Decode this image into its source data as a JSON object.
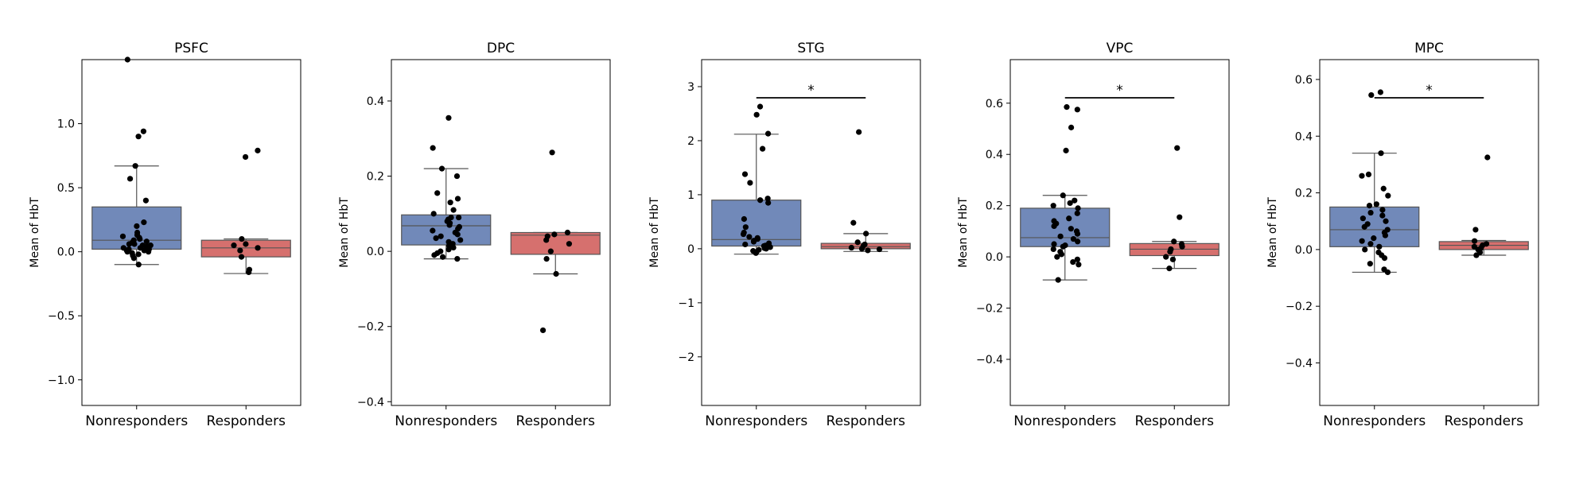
{
  "colors": {
    "nonresponders_box": "#7189b9",
    "responders_box": "#d6706e",
    "points": "#000000",
    "whisker": "#555555",
    "frame": "#000000"
  },
  "chart_data": [
    {
      "type": "box",
      "title": "PSFC",
      "ylabel": "Mean of HbT",
      "categories": [
        "Nonresponders",
        "Responders"
      ],
      "ylim": [
        -1.2,
        1.5
      ],
      "yticks": [
        -1.0,
        -0.5,
        0.0,
        0.5,
        1.0
      ],
      "ytick_labels": [
        "−1.0",
        "−0.5",
        "0.0",
        "0.5",
        "1.0"
      ],
      "boxes": [
        {
          "whislo": -0.1,
          "q1": 0.02,
          "median": 0.09,
          "q3": 0.35,
          "whishi": 0.67
        },
        {
          "whislo": -0.17,
          "q1": -0.04,
          "median": 0.03,
          "q3": 0.09,
          "whishi": 0.1
        }
      ],
      "points": [
        [
          1.5,
          0.94,
          0.9,
          0.67,
          0.57,
          0.4,
          0.23,
          0.2,
          0.15,
          0.13,
          0.12,
          0.11,
          0.1,
          0.09,
          0.08,
          0.07,
          0.06,
          0.06,
          0.05,
          0.05,
          0.04,
          0.04,
          0.03,
          0.03,
          0.02,
          0.02,
          0.01,
          0.01,
          0.0,
          0.0,
          -0.01,
          -0.02,
          -0.03,
          -0.05,
          -0.1
        ],
        [
          0.79,
          0.74,
          0.1,
          0.06,
          0.05,
          0.03,
          0.01,
          -0.04,
          -0.14,
          -0.16
        ]
      ],
      "significance": ""
    },
    {
      "type": "box",
      "title": "DPC",
      "ylabel": "Mean of HbT",
      "categories": [
        "Nonresponders",
        "Responders"
      ],
      "ylim": [
        -0.41,
        0.51
      ],
      "yticks": [
        -0.4,
        -0.2,
        0.0,
        0.2,
        0.4
      ],
      "ytick_labels": [
        "−0.4",
        "−0.2",
        "0.0",
        "0.2",
        "0.4"
      ],
      "boxes": [
        {
          "whislo": -0.02,
          "q1": 0.017,
          "median": 0.068,
          "q3": 0.097,
          "whishi": 0.22
        },
        {
          "whislo": -0.06,
          "q1": -0.008,
          "median": 0.043,
          "q3": 0.05,
          "whishi": 0.05
        }
      ],
      "points": [
        [
          0.355,
          0.275,
          0.22,
          0.2,
          0.155,
          0.14,
          0.13,
          0.11,
          0.1,
          0.09,
          0.09,
          0.085,
          0.08,
          0.075,
          0.07,
          0.065,
          0.06,
          0.055,
          0.05,
          0.045,
          0.04,
          0.035,
          0.03,
          0.025,
          0.02,
          0.015,
          0.01,
          0.005,
          0.0,
          -0.005,
          -0.01,
          -0.015,
          -0.02
        ],
        [
          0.263,
          0.05,
          0.045,
          0.04,
          0.03,
          0.02,
          0.0,
          -0.02,
          -0.06,
          -0.21
        ]
      ],
      "significance": ""
    },
    {
      "type": "box",
      "title": "STG",
      "ylabel": "Mean of HbT",
      "categories": [
        "Nonresponders",
        "Responders"
      ],
      "ylim": [
        -2.9,
        3.5
      ],
      "yticks": [
        -2,
        -1,
        0,
        1,
        2,
        3
      ],
      "ytick_labels": [
        "−2",
        "−1",
        "0",
        "1",
        "2",
        "3"
      ],
      "boxes": [
        {
          "whislo": -0.1,
          "q1": 0.05,
          "median": 0.17,
          "q3": 0.9,
          "whishi": 2.12
        },
        {
          "whislo": -0.05,
          "q1": 0.0,
          "median": 0.04,
          "q3": 0.1,
          "whishi": 0.28
        }
      ],
      "points": [
        [
          2.63,
          2.48,
          2.13,
          1.85,
          1.38,
          1.22,
          0.93,
          0.9,
          0.85,
          0.55,
          0.4,
          0.3,
          0.27,
          0.22,
          0.2,
          0.18,
          0.15,
          0.13,
          0.1,
          0.08,
          0.06,
          0.05,
          0.03,
          0.01,
          0.0,
          -0.02,
          -0.04,
          -0.06,
          -0.08
        ],
        [
          2.16,
          0.48,
          0.28,
          0.12,
          0.08,
          0.05,
          0.02,
          0.0,
          -0.01,
          -0.03
        ]
      ],
      "significance": "*"
    },
    {
      "type": "box",
      "title": "VPC",
      "ylabel": "Mean of HbT",
      "categories": [
        "Nonresponders",
        "Responders"
      ],
      "ylim": [
        -0.58,
        0.77
      ],
      "yticks": [
        -0.4,
        -0.2,
        0.0,
        0.2,
        0.4,
        0.6
      ],
      "ytick_labels": [
        "−0.4",
        "−0.2",
        "0.0",
        "0.2",
        "0.4",
        "0.6"
      ],
      "boxes": [
        {
          "whislo": -0.09,
          "q1": 0.04,
          "median": 0.075,
          "q3": 0.19,
          "whishi": 0.24
        },
        {
          "whislo": -0.045,
          "q1": 0.005,
          "median": 0.03,
          "q3": 0.052,
          "whishi": 0.06
        }
      ],
      "points": [
        [
          0.585,
          0.575,
          0.505,
          0.415,
          0.24,
          0.22,
          0.21,
          0.2,
          0.19,
          0.17,
          0.15,
          0.14,
          0.13,
          0.12,
          0.11,
          0.1,
          0.09,
          0.08,
          0.07,
          0.06,
          0.05,
          0.045,
          0.04,
          0.03,
          0.02,
          0.01,
          0.0,
          -0.01,
          -0.02,
          -0.03,
          -0.09
        ],
        [
          0.425,
          0.155,
          0.06,
          0.05,
          0.04,
          0.03,
          0.02,
          0.0,
          -0.01,
          -0.045
        ]
      ],
      "significance": "*"
    },
    {
      "type": "box",
      "title": "MPC",
      "ylabel": "Mean of HbT",
      "categories": [
        "Nonresponders",
        "Responders"
      ],
      "ylim": [
        -0.55,
        0.67
      ],
      "yticks": [
        -0.4,
        -0.2,
        0.0,
        0.2,
        0.4,
        0.6
      ],
      "ytick_labels": [
        "−0.4",
        "−0.2",
        "0.0",
        "0.2",
        "0.4",
        "0.6"
      ],
      "boxes": [
        {
          "whislo": -0.08,
          "q1": 0.01,
          "median": 0.07,
          "q3": 0.15,
          "whishi": 0.34
        },
        {
          "whislo": -0.02,
          "q1": 0.0,
          "median": 0.015,
          "q3": 0.028,
          "whishi": 0.032
        }
      ],
      "points": [
        [
          0.555,
          0.545,
          0.34,
          0.265,
          0.26,
          0.215,
          0.19,
          0.16,
          0.155,
          0.14,
          0.13,
          0.12,
          0.11,
          0.1,
          0.09,
          0.08,
          0.07,
          0.06,
          0.05,
          0.04,
          0.03,
          0.02,
          0.01,
          0.0,
          -0.01,
          -0.02,
          -0.03,
          -0.05,
          -0.07,
          -0.08
        ],
        [
          0.325,
          0.07,
          0.03,
          0.02,
          0.015,
          0.01,
          0.005,
          0.0,
          -0.01,
          -0.02
        ]
      ],
      "significance": "*"
    }
  ]
}
